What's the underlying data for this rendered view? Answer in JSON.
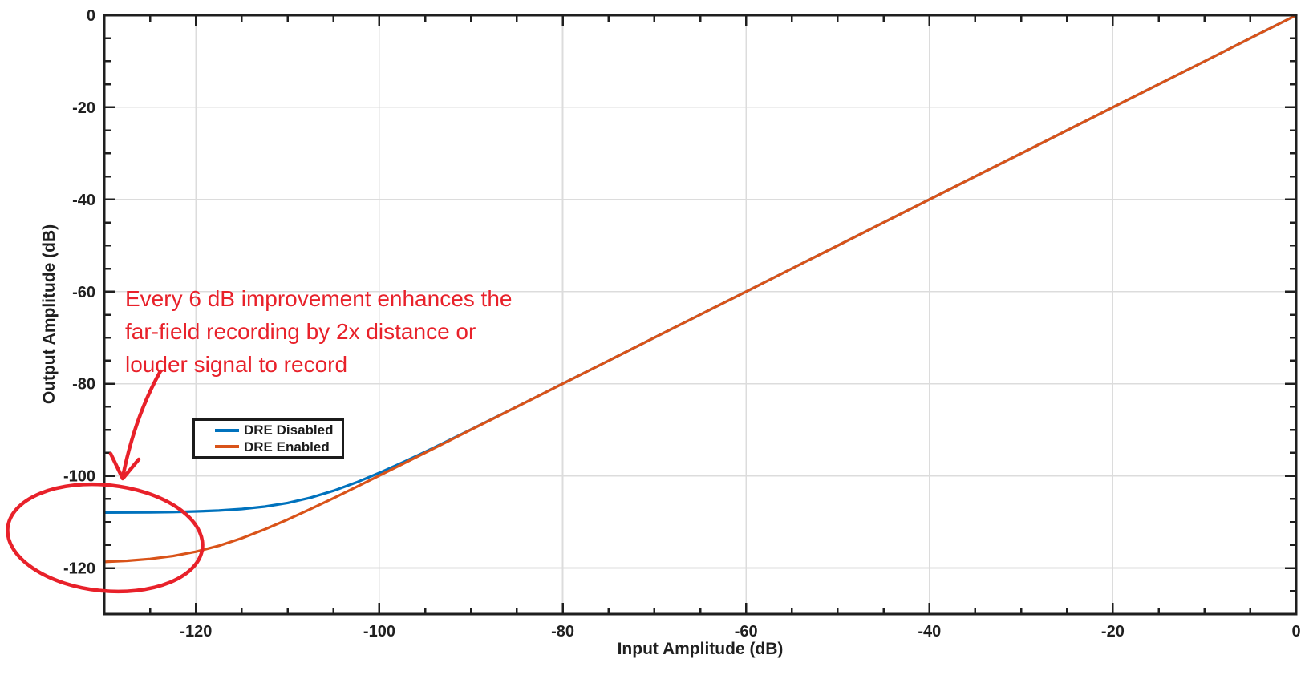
{
  "chart_data": {
    "type": "line",
    "title": "",
    "xlabel": "Input Amplitude (dB)",
    "ylabel": "Output Amplitude (dB)",
    "xlim": [
      -130,
      0
    ],
    "ylim": [
      -130,
      0
    ],
    "x_major_ticks": [
      -120,
      -100,
      -80,
      -60,
      -40,
      -20,
      0
    ],
    "x_major_labels": [
      "-120",
      "-100",
      "-80",
      "-60",
      "-40",
      "-20",
      "0"
    ],
    "y_major_ticks": [
      0,
      -20,
      -40,
      -60,
      -80,
      -100,
      -120
    ],
    "y_major_labels": [
      "0",
      "-20",
      "-40",
      "-60",
      "-80",
      "-100",
      "-120"
    ],
    "minor_tick_step_db": 5,
    "grid": "major-only",
    "legend_position": "inside lower-left",
    "x": [
      -130,
      -127.5,
      -125,
      -122.5,
      -120,
      -117.5,
      -115,
      -112.5,
      -110,
      -107.5,
      -105,
      -102.5,
      -100,
      -97.5,
      -95,
      -92.5,
      -90,
      -87.5,
      -85,
      -82.5,
      -80,
      -75,
      -70,
      -65,
      -60,
      -55,
      -50,
      -45,
      -40,
      -35,
      -30,
      -25,
      -20,
      -15,
      -10,
      -5,
      0
    ],
    "series": [
      {
        "name": "DRE Disabled",
        "color": "#0072BD",
        "noise_floor_db": -108,
        "y": [
          -107.97,
          -107.95,
          -107.91,
          -107.87,
          -107.73,
          -107.54,
          -107.21,
          -106.68,
          -105.88,
          -104.73,
          -103.24,
          -101.42,
          -99.36,
          -97.13,
          -94.79,
          -92.38,
          -89.93,
          -87.46,
          -84.98,
          -82.49,
          -79.99,
          -75,
          -70,
          -65,
          -60,
          -55,
          -50,
          -45,
          -40,
          -35,
          -30,
          -25,
          -20,
          -15,
          -10,
          -5,
          0
        ]
      },
      {
        "name": "DRE Enabled",
        "color": "#D95319",
        "noise_floor_db": -119,
        "y": [
          -118.67,
          -118.43,
          -118.03,
          -117.4,
          -116.46,
          -115.18,
          -113.54,
          -111.62,
          -109.49,
          -107.2,
          -104.83,
          -102.4,
          -99.95,
          -97.47,
          -94.98,
          -92.49,
          -89.99,
          -87.5,
          -85,
          -82.5,
          -80,
          -75,
          -70,
          -65,
          -60,
          -55,
          -50,
          -45,
          -40,
          -35,
          -30,
          -25,
          -20,
          -15,
          -10,
          -5,
          0
        ]
      }
    ],
    "annotation": {
      "lines": [
        "Every 6 dB improvement enhances the",
        "far-field recording by 2x distance or",
        "louder signal to record"
      ],
      "text": "Every 6 dB improvement enhances the far-field recording by 2x distance or louder signal to record",
      "color": "#e8212a"
    }
  },
  "colors": {
    "axis": "#1f1f1f",
    "grid": "#dcdcdc",
    "background": "#ffffff"
  }
}
